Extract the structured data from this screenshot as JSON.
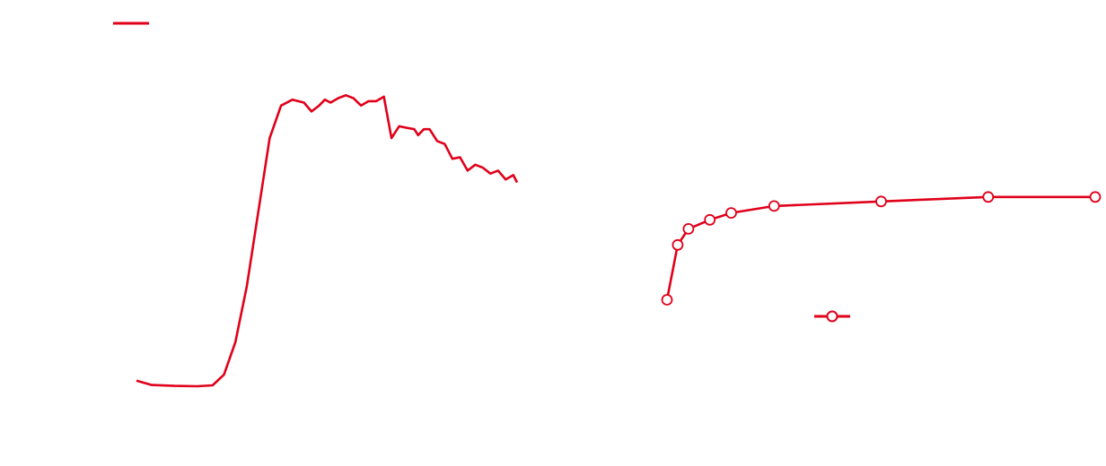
{
  "colors": {
    "series": "#e0001a",
    "marker_fill": "#ffffff",
    "background": "#ffffff"
  },
  "chart_data": [
    {
      "type": "line",
      "title": "",
      "xlabel": "",
      "ylabel": "",
      "xlim": [
        0,
        100
      ],
      "ylim": [
        0,
        100
      ],
      "grid": false,
      "legend": {
        "position": "top-left",
        "entries": [
          {
            "name": "",
            "marker": "line"
          }
        ]
      },
      "series": [
        {
          "name": "",
          "x": [
            0,
            4,
            10,
            16,
            20,
            23,
            26,
            29,
            32,
            35,
            38,
            41,
            44,
            46,
            48,
            49.5,
            51,
            53,
            55,
            57,
            59,
            61,
            63,
            65,
            67,
            69,
            71,
            73,
            74,
            75.5,
            77,
            79,
            81,
            83,
            85,
            87,
            89,
            91,
            93,
            95,
            97,
            99,
            100
          ],
          "y": [
            1,
            -0.5,
            -0.8,
            -0.9,
            -0.6,
            3,
            14,
            33,
            58,
            83,
            94,
            96,
            95,
            92,
            94,
            96,
            95,
            96.5,
            97.5,
            96.5,
            94,
            95.5,
            95.5,
            97,
            83,
            87,
            86.5,
            86,
            84,
            86,
            86,
            82,
            81,
            76,
            76.5,
            72,
            74,
            73,
            71,
            72,
            69,
            70.5,
            68
          ]
        }
      ]
    },
    {
      "type": "line",
      "title": "",
      "xlabel": "",
      "ylabel": "",
      "xlim": [
        0,
        100
      ],
      "ylim": [
        0,
        100
      ],
      "grid": false,
      "legend": {
        "position": "bottom-center",
        "entries": [
          {
            "name": "",
            "marker": "line-circle"
          }
        ]
      },
      "series": [
        {
          "name": "",
          "x": [
            0,
            2.5,
            5,
            10,
            15,
            25,
            50,
            75,
            100
          ],
          "y": [
            10,
            34,
            41,
            45,
            48,
            51,
            53,
            55,
            55
          ]
        }
      ]
    }
  ]
}
